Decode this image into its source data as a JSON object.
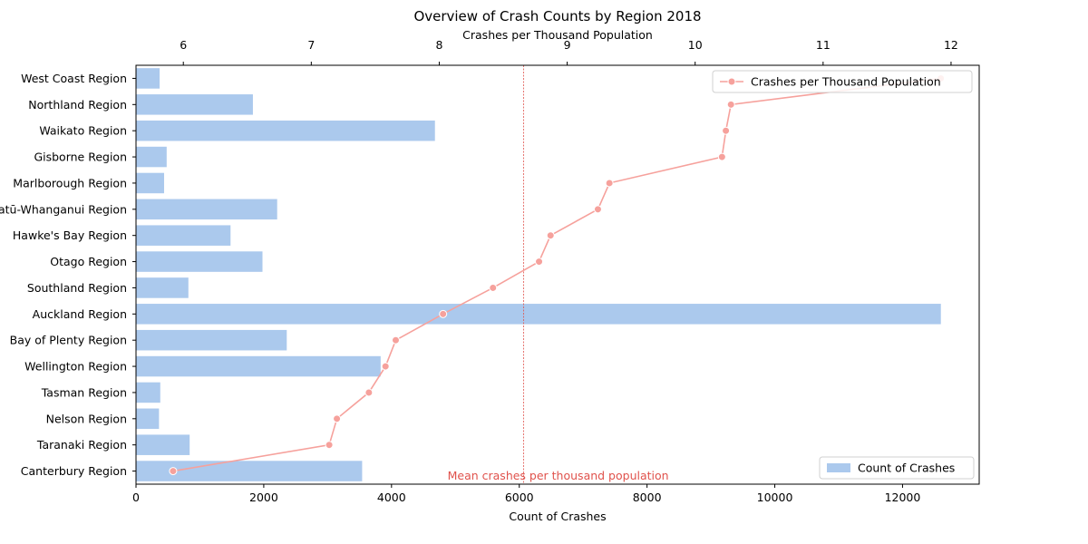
{
  "chart_data": {
    "type": "bar",
    "orientation": "horizontal",
    "title": "Overview of Crash Counts by Region 2018",
    "xlabel": "Count of Crashes",
    "x2label": "Crashes per Thousand Population",
    "categories": [
      "West Coast Region",
      "Northland Region",
      "Waikato Region",
      "Gisborne Region",
      "Marlborough Region",
      "Manawatū-Whanganui Region",
      "Hawke's Bay Region",
      "Otago Region",
      "Southland Region",
      "Auckland Region",
      "Bay of Plenty Region",
      "Wellington Region",
      "Tasman Region",
      "Nelson Region",
      "Taranaki Region",
      "Canterbury Region"
    ],
    "series": [
      {
        "name": "Count of Crashes",
        "type": "bar",
        "axis": "bottom",
        "color": "#abc9ed",
        "values": [
          370,
          1830,
          4680,
          480,
          440,
          2210,
          1480,
          1980,
          820,
          12600,
          2360,
          3830,
          380,
          360,
          840,
          3540
        ]
      },
      {
        "name": "Crashes per Thousand Population",
        "type": "line",
        "axis": "top",
        "color": "#f6a19c",
        "values": [
          11.92,
          10.28,
          10.24,
          10.21,
          9.33,
          9.24,
          8.87,
          8.78,
          8.42,
          8.03,
          7.66,
          7.58,
          7.45,
          7.2,
          7.14,
          5.92
        ]
      }
    ],
    "x_ticks": [
      0,
      2000,
      4000,
      6000,
      8000,
      10000,
      12000
    ],
    "x_tick_labels": [
      "0",
      "2000",
      "4000",
      "6000",
      "8000",
      "10000",
      "12000"
    ],
    "xlim": [
      0,
      13200
    ],
    "x2_ticks": [
      6,
      7,
      8,
      9,
      10,
      11,
      12
    ],
    "x2_tick_labels": [
      "6",
      "7",
      "8",
      "9",
      "10",
      "11",
      "12"
    ],
    "x2lim": [
      5.63,
      12.22
    ],
    "reference_line": {
      "axis": "top",
      "value": 8.66,
      "label": "Mean crashes per thousand population",
      "color": "#e0524c"
    },
    "legends": [
      {
        "label": "Crashes per Thousand Population",
        "placement": "top-right",
        "marker": "line-dot"
      },
      {
        "label": "Count of Crashes",
        "placement": "bottom-right",
        "marker": "bar"
      }
    ],
    "grid": false
  }
}
